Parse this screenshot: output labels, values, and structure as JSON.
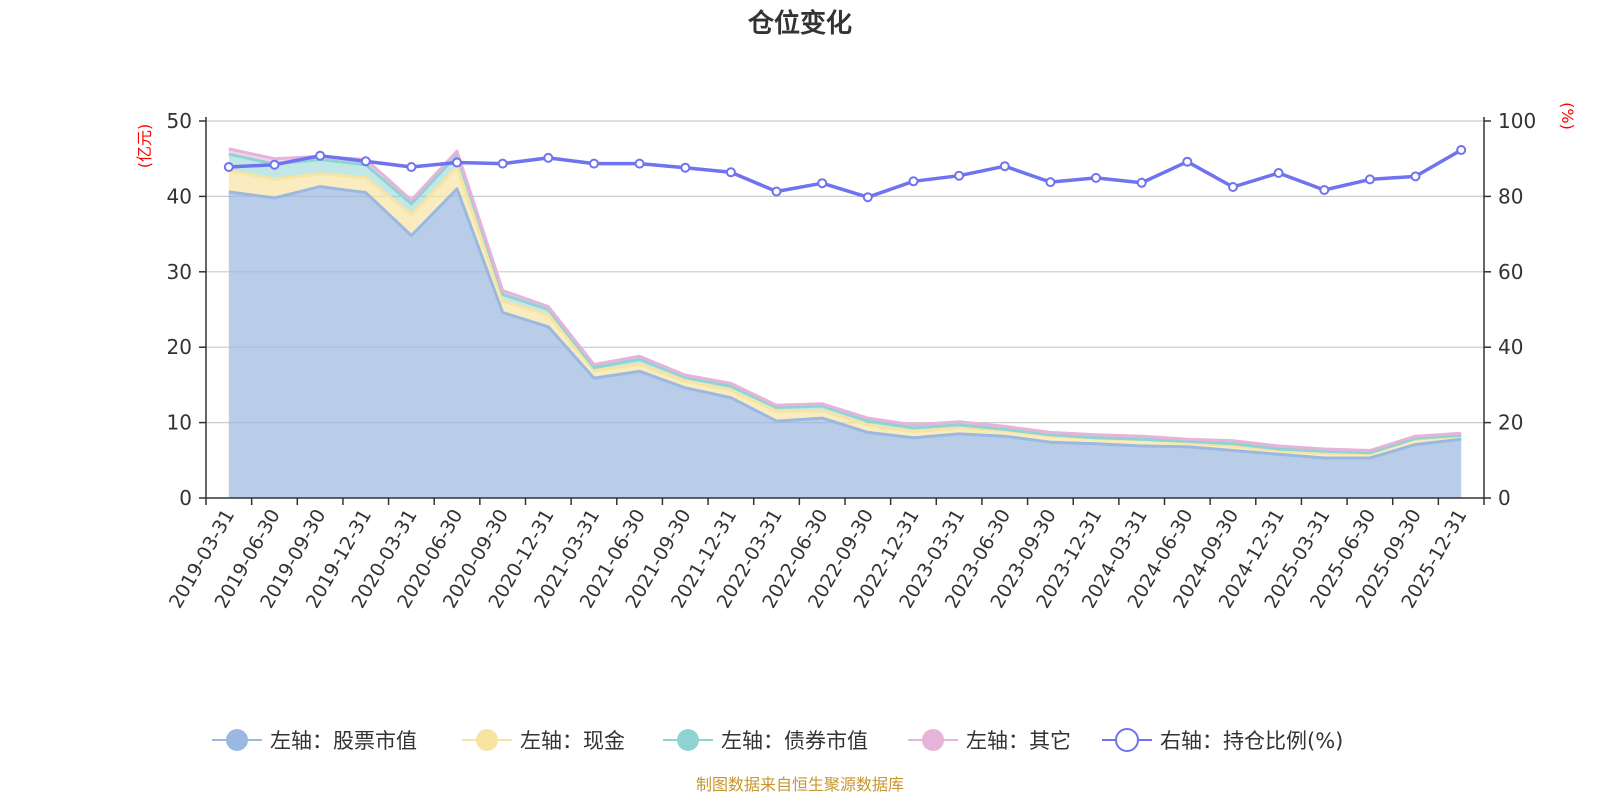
{
  "chart_data": {
    "type": "area",
    "title": "仓位变化",
    "left_axis_unit": "(亿元)",
    "right_axis_unit": "(%)",
    "left_ylim": [
      0,
      50
    ],
    "left_ticks": [
      0,
      10,
      20,
      30,
      40,
      50
    ],
    "right_ylim": [
      0,
      100
    ],
    "right_ticks": [
      0,
      20,
      40,
      60,
      80,
      100
    ],
    "categories": [
      "2019-03-31",
      "2019-06-30",
      "2019-09-30",
      "2019-12-31",
      "2020-03-31",
      "2020-06-30",
      "2020-09-30",
      "2020-12-31",
      "2021-03-31",
      "2021-06-30",
      "2021-09-30",
      "2021-12-31",
      "2022-03-31",
      "2022-06-30",
      "2022-09-30",
      "2022-12-31",
      "2023-03-31",
      "2023-06-30",
      "2023-09-30",
      "2023-12-31",
      "2024-03-31",
      "2024-06-30",
      "2024-09-30",
      "2024-12-31",
      "2025-03-31",
      "2025-06-30",
      "2025-09-30",
      "2025-12-31"
    ],
    "series": [
      {
        "name": "左轴：股票市值",
        "axis": "left",
        "kind": "area",
        "color": "#9bb8e0",
        "values": [
          40.6,
          39.8,
          41.3,
          40.5,
          34.8,
          41.0,
          24.6,
          22.7,
          15.9,
          16.8,
          14.6,
          13.3,
          10.2,
          10.6,
          8.7,
          8.0,
          8.5,
          8.2,
          7.4,
          7.2,
          6.9,
          6.8,
          6.3,
          5.8,
          5.3,
          5.3,
          7.1,
          7.8
        ]
      },
      {
        "name": "左轴：现金",
        "axis": "left",
        "kind": "area",
        "color": "#f7e4a3",
        "values": [
          2.8,
          2.5,
          1.7,
          2.0,
          2.8,
          2.9,
          1.5,
          1.6,
          1.0,
          0.9,
          0.9,
          1.0,
          1.3,
          1.0,
          1.0,
          0.8,
          0.8,
          0.7,
          0.8,
          0.7,
          0.8,
          0.5,
          0.6,
          0.5,
          0.6,
          0.6,
          0.7,
          0.4
        ]
      },
      {
        "name": "左轴：债券市值",
        "axis": "left",
        "kind": "area",
        "color": "#8fd3d3",
        "values": [
          2.2,
          2.0,
          1.9,
          1.7,
          1.4,
          1.6,
          0.9,
          0.7,
          0.4,
          0.7,
          0.5,
          0.5,
          0.5,
          0.6,
          0.5,
          0.5,
          0.4,
          0.2,
          0.2,
          0.1,
          0.1,
          0.2,
          0.3,
          0.2,
          0.3,
          0.1,
          0.1,
          0.1
        ]
      },
      {
        "name": "左轴：其它",
        "axis": "left",
        "kind": "area",
        "color": "#e6b3da",
        "values": [
          0.7,
          0.7,
          0.4,
          0.7,
          0.5,
          0.5,
          0.5,
          0.4,
          0.4,
          0.4,
          0.3,
          0.4,
          0.3,
          0.3,
          0.4,
          0.4,
          0.4,
          0.4,
          0.3,
          0.4,
          0.4,
          0.3,
          0.4,
          0.4,
          0.3,
          0.3,
          0.3,
          0.3
        ]
      },
      {
        "name": "右轴：持仓比例(%)",
        "axis": "right",
        "kind": "line",
        "color": "#6f73f0",
        "values": [
          87.8,
          88.4,
          90.8,
          89.3,
          87.8,
          89.0,
          88.7,
          90.2,
          88.7,
          88.7,
          87.6,
          86.4,
          81.3,
          83.5,
          79.8,
          84.0,
          85.5,
          88.0,
          83.8,
          84.9,
          83.6,
          89.2,
          82.5,
          86.2,
          81.7,
          84.5,
          85.3,
          92.3
        ]
      }
    ],
    "legend_position": "bottom",
    "grid": true
  },
  "source_note": "制图数据来自恒生聚源数据库"
}
